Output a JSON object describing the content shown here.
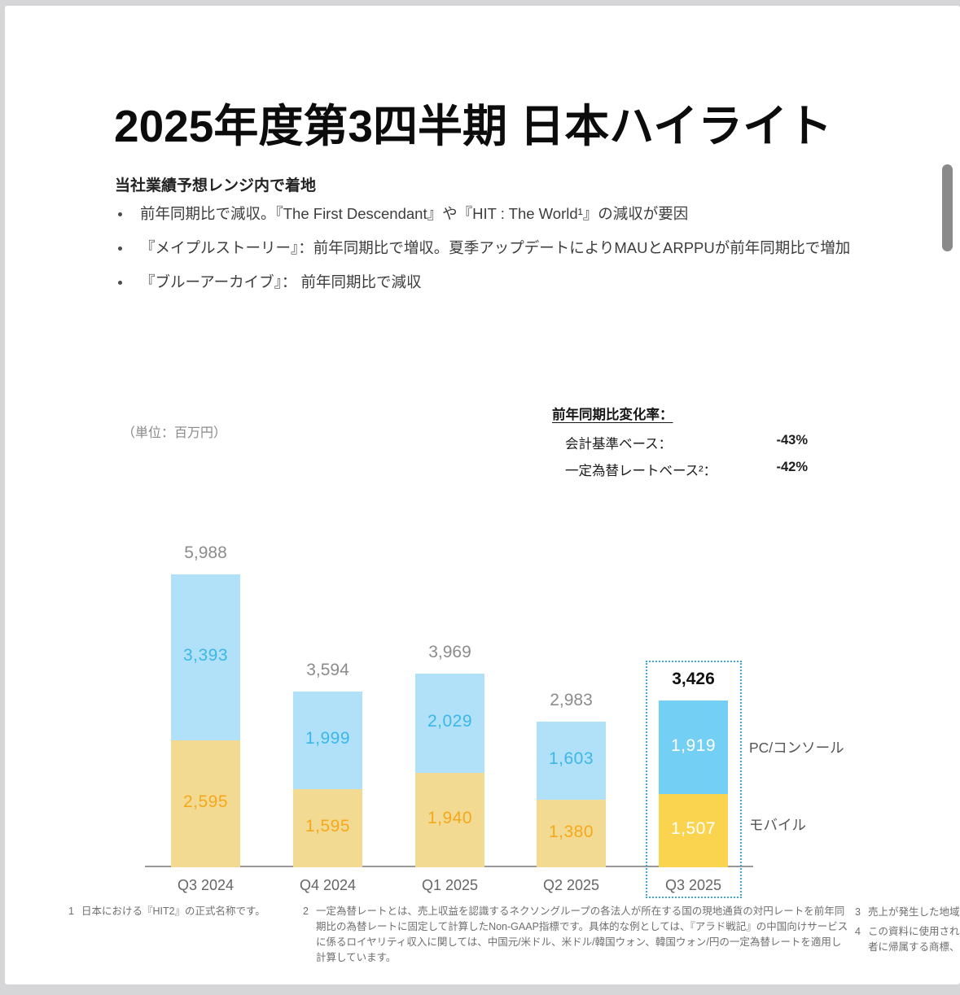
{
  "header": {
    "title": "2025年度第3四半期 日本ハイライト",
    "subtitle": "当社業績予想レンジ内で着地"
  },
  "bullets": {
    "items": [
      "前年同期比で減収。『The First Descendant』や『HIT : The World¹』の減収が要因",
      "『メイプルストーリー』：前年同期比で増収。夏季アップデートによりMAUとARPPUが前年同期比で増加",
      "『ブルーアーカイブ』： 前年同期比で減収"
    ]
  },
  "yoy": {
    "heading": "前年同期比変化率：",
    "rows": [
      {
        "label": "会計基準ベース：",
        "value": "-43%"
      },
      {
        "label": "一定為替レートベース²：",
        "value": "-42%"
      }
    ]
  },
  "chart_data": {
    "type": "bar",
    "stacked": true,
    "unit_label": "（単位：百万円）",
    "title": "",
    "xlabel": "",
    "ylabel": "百万円",
    "grid": false,
    "legend_position": "right",
    "categories": [
      "Q3 2024",
      "Q4 2024",
      "Q1 2025",
      "Q2 2025",
      "Q3 2025"
    ],
    "series": [
      {
        "name": "モバイル",
        "values": [
          2595,
          1595,
          1940,
          1380,
          1507
        ]
      },
      {
        "name": "PC/コンソール",
        "values": [
          3393,
          1999,
          2029,
          1603,
          1919
        ]
      }
    ],
    "totals": [
      5988,
      3594,
      3969,
      2983,
      3426
    ],
    "highlight_index": 4,
    "colors": {
      "pc": "#B0E1F8",
      "pc_strong": "#74CFF4",
      "mobile": "#F3DA92",
      "mobile_strong": "#FBD44F",
      "pc_label": "#3CB7E8",
      "mobile_label": "#F5A81C",
      "label_on_strong": "#FFFFFF",
      "total": "#8C8C8C",
      "total_strong": "#111111",
      "highlight_border": "#3FA7DD",
      "axis": "#999999",
      "axis_label": "#666666"
    }
  },
  "footnotes": {
    "fn1": {
      "num": "1",
      "text": "日本における『HIT2』の正式名称です。"
    },
    "fn2": {
      "num": "2",
      "text": "一定為替レートとは、売上収益を認識するネクソングループの各法人が所在する国の現地通貨の対円レートを前年同期比の為替レートに固定して計算したNon-GAAP指標です。具体的な例としては、『アラド戦記』の中国向けサービスに係るロイヤリティ収入に関しては、中国元/米ドル、米ドル/韓国ウォン、韓国ウォン/円の一定為替レートを適用し計算しています。"
    },
    "fn3": {
      "num": "3",
      "text": "売上が発生した地域別"
    },
    "fn4": {
      "num": "4",
      "line1": "この資料に使用されてい",
      "line2": "者に帰属する商標、登録"
    }
  }
}
